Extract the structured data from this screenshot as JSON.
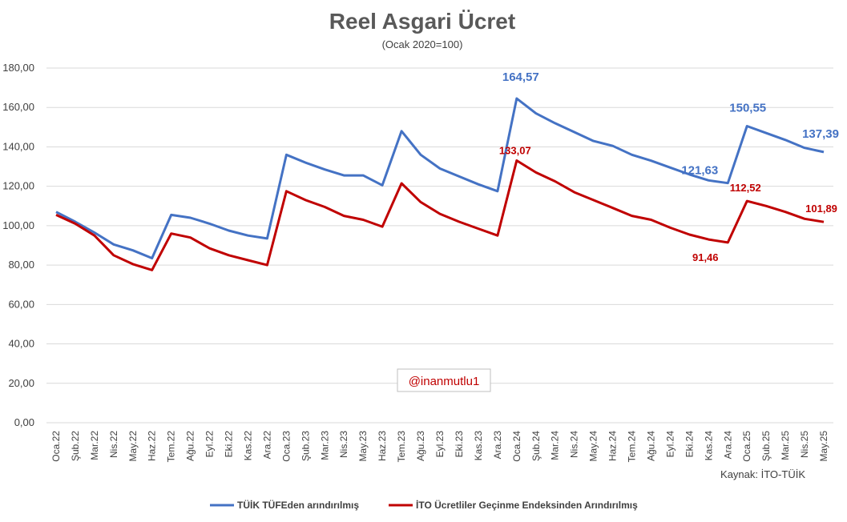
{
  "chart_data": {
    "type": "line",
    "title": "Reel Asgari Ücret",
    "subtitle": "(Ocak 2020=100)",
    "ylim": [
      0,
      180
    ],
    "yticks": [
      "0,00",
      "20,00",
      "40,00",
      "60,00",
      "80,00",
      "100,00",
      "120,00",
      "140,00",
      "160,00",
      "180,00"
    ],
    "categories": [
      "Oca.22",
      "Şub.22",
      "Mar.22",
      "Nis.22",
      "May.22",
      "Haz.22",
      "Tem.22",
      "Ağu.22",
      "Eyl.22",
      "Eki.22",
      "Kas.22",
      "Ara.22",
      "Oca.23",
      "Şub.23",
      "Mar.23",
      "Nis.23",
      "May.23",
      "Haz.23",
      "Tem.23",
      "Ağu.23",
      "Eyl.23",
      "Eki.23",
      "Kas.23",
      "Ara.23",
      "Oca.24",
      "Şub.24",
      "Mar.24",
      "Nis.24",
      "May.24",
      "Haz.24",
      "Tem.24",
      "Ağu.24",
      "Eyl.24",
      "Eki.24",
      "Kas.24",
      "Ara.24",
      "Oca.25",
      "Şub.25",
      "Mar.25",
      "Nis.25",
      "May.25"
    ],
    "series": [
      {
        "name": "TÜİK TÜFEden arındırılmış",
        "color": "#4472c4",
        "values": [
          107.0,
          102.0,
          96.5,
          90.5,
          87.5,
          83.5,
          105.5,
          104.0,
          101.0,
          97.5,
          95.0,
          93.5,
          136.0,
          132.0,
          128.5,
          125.5,
          125.5,
          120.5,
          148.0,
          136.0,
          129.0,
          125.0,
          121.0,
          117.5,
          164.57,
          157.0,
          152.0,
          147.5,
          143.0,
          140.5,
          136.0,
          133.0,
          129.5,
          126.0,
          123.0,
          121.63,
          150.55,
          147.0,
          143.5,
          139.5,
          137.39
        ],
        "labels": [
          {
            "index": 24,
            "text": "164,57"
          },
          {
            "index": 35,
            "text": "121,63"
          },
          {
            "index": 36,
            "text": "150,55"
          },
          {
            "index": 40,
            "text": "137,39"
          }
        ]
      },
      {
        "name": "İTO Ücretliler Geçinme Endeksinden Arındırılmış",
        "color": "#c00000",
        "values": [
          105.5,
          101.0,
          95.0,
          85.0,
          80.5,
          77.5,
          96.0,
          94.0,
          88.5,
          85.0,
          82.5,
          80.0,
          117.5,
          113.0,
          109.5,
          105.0,
          103.0,
          99.5,
          121.5,
          112.0,
          106.0,
          102.0,
          98.5,
          95.0,
          133.07,
          127.0,
          122.5,
          117.0,
          113.0,
          109.0,
          105.0,
          103.0,
          99.0,
          95.5,
          93.0,
          91.46,
          112.52,
          110.0,
          107.0,
          103.5,
          101.89
        ],
        "labels": [
          {
            "index": 24,
            "text": "133,07"
          },
          {
            "index": 35,
            "text": "91,46"
          },
          {
            "index": 36,
            "text": "112,52"
          },
          {
            "index": 40,
            "text": "101,89"
          }
        ]
      }
    ],
    "legend": "bottom",
    "grid": true
  },
  "watermark": "@inanmutlu1",
  "source": "Kaynak: İTO-TÜİK"
}
